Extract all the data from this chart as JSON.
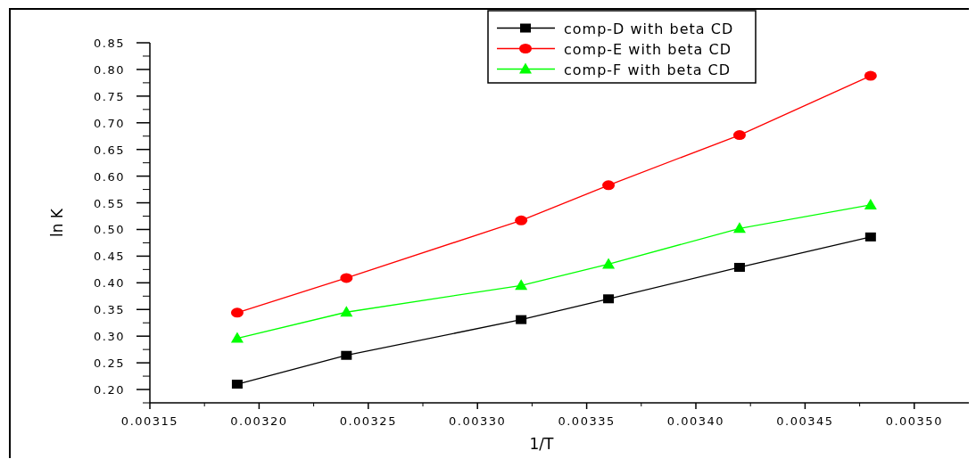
{
  "chart_data": {
    "type": "line",
    "xlabel": "1/T",
    "ylabel": "ln K",
    "xlim": [
      0.00315,
      0.003525
    ],
    "xticks": [
      {
        "value": 0.00315,
        "label": "0.00315"
      },
      {
        "value": 0.0032,
        "label": "0.00320"
      },
      {
        "value": 0.00325,
        "label": "0.00325"
      },
      {
        "value": 0.0033,
        "label": "0.00330"
      },
      {
        "value": 0.00335,
        "label": "0.00335"
      },
      {
        "value": 0.0034,
        "label": "0.00340"
      },
      {
        "value": 0.00345,
        "label": "0.00345"
      },
      {
        "value": 0.0035,
        "label": "0.00350"
      }
    ],
    "ylim": [
      0.175,
      0.85
    ],
    "yticks": [
      {
        "value": 0.2,
        "label": "0.20"
      },
      {
        "value": 0.25,
        "label": "0.25"
      },
      {
        "value": 0.3,
        "label": "0.30"
      },
      {
        "value": 0.35,
        "label": "0.35"
      },
      {
        "value": 0.4,
        "label": "0.40"
      },
      {
        "value": 0.45,
        "label": "0.45"
      },
      {
        "value": 0.5,
        "label": "0.50"
      },
      {
        "value": 0.55,
        "label": "0.55"
      },
      {
        "value": 0.6,
        "label": "0.60"
      },
      {
        "value": 0.65,
        "label": "0.65"
      },
      {
        "value": 0.7,
        "label": "0.70"
      },
      {
        "value": 0.75,
        "label": "0.75"
      },
      {
        "value": 0.8,
        "label": "0.80"
      },
      {
        "value": 0.85,
        "label": "0.85"
      }
    ],
    "x": [
      0.00319,
      0.00324,
      0.00332,
      0.00336,
      0.00342,
      0.00348
    ],
    "grid": false,
    "legend": "top",
    "line_style": "solid",
    "series": [
      {
        "name": "comp-D with beta CD",
        "color": "#000000",
        "marker": "square",
        "values": [
          0.21,
          0.264,
          0.331,
          0.37,
          0.429,
          0.486
        ]
      },
      {
        "name": "comp-E with beta CD",
        "color": "#ff0000",
        "marker": "circle",
        "values": [
          0.344,
          0.409,
          0.517,
          0.583,
          0.677,
          0.788
        ]
      },
      {
        "name": "comp-F with beta CD",
        "color": "#00ff00",
        "marker": "triangle",
        "values": [
          0.296,
          0.345,
          0.395,
          0.435,
          0.502,
          0.546
        ]
      }
    ]
  }
}
